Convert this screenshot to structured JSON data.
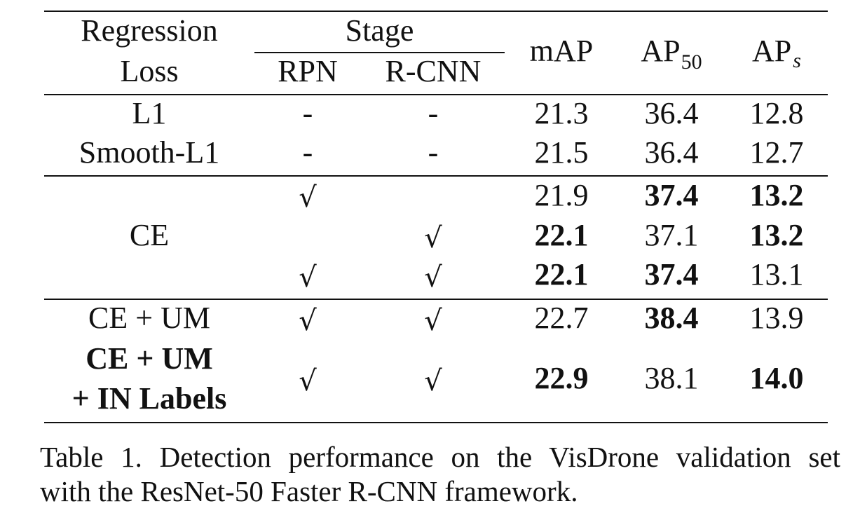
{
  "table": {
    "header": {
      "loss_line1": "Regression",
      "loss_line2": "Loss",
      "stage": "Stage",
      "rpn": "RPN",
      "rcnn": "R-CNN",
      "map": "mAP",
      "ap50_base": "AP",
      "ap50_sub": "50",
      "aps_base": "AP",
      "aps_sub": "s"
    },
    "rows": [
      {
        "loss": "L1",
        "rpn": "-",
        "rcnn": "-",
        "map": "21.3",
        "ap50": "36.4",
        "aps": "12.8"
      },
      {
        "loss": "Smooth-L1",
        "rpn": "-",
        "rcnn": "-",
        "map": "21.5",
        "ap50": "36.4",
        "aps": "12.7"
      },
      {
        "loss": "",
        "rpn": "√",
        "rcnn": "",
        "map": "21.9",
        "ap50": "37.4",
        "aps": "13.2"
      },
      {
        "loss": "CE",
        "rpn": "",
        "rcnn": "√",
        "map": "22.1",
        "ap50": "37.1",
        "aps": "13.2"
      },
      {
        "loss": "",
        "rpn": "√",
        "rcnn": "√",
        "map": "22.1",
        "ap50": "37.4",
        "aps": "13.1"
      },
      {
        "loss": "CE + UM",
        "rpn": "√",
        "rcnn": "√",
        "map": "22.7",
        "ap50": "38.4",
        "aps": "13.9"
      },
      {
        "loss_line1": "CE + UM",
        "loss_line2": "+ IN Labels",
        "rpn": "√",
        "rcnn": "√",
        "map": "22.9",
        "ap50": "38.1",
        "aps": "14.0"
      }
    ]
  },
  "caption": {
    "line1": "Table 1. Detection performance on the VisDrone validation set",
    "line2": "with the ResNet-50 Faster R-CNN framework."
  }
}
